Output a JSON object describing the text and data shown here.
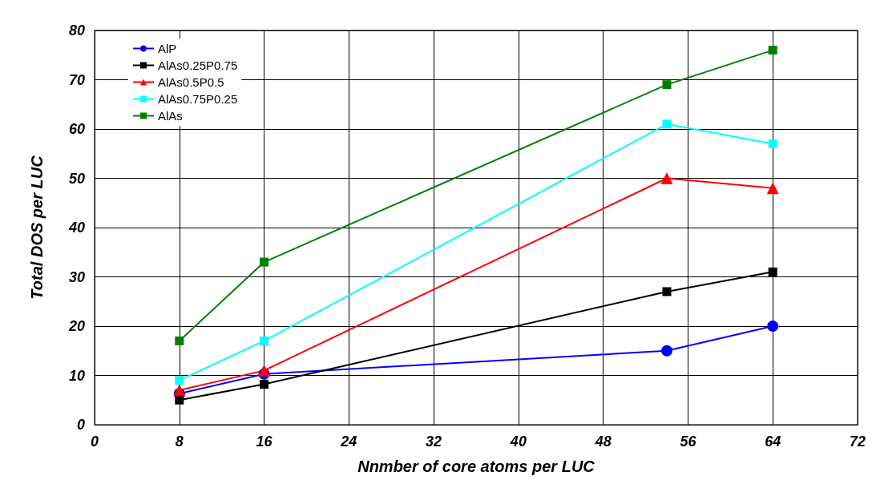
{
  "chart_data": {
    "type": "line",
    "xlabel": "Nnmber of core atoms per LUC",
    "ylabel": "Total DOS per LUC",
    "x": [
      8,
      16,
      54,
      64
    ],
    "xlim": [
      0,
      72
    ],
    "xticks": [
      0,
      8,
      16,
      24,
      32,
      40,
      48,
      56,
      64,
      72
    ],
    "ylim": [
      0,
      80
    ],
    "yticks": [
      0,
      10,
      20,
      30,
      40,
      50,
      60,
      70,
      80
    ],
    "grid": true,
    "legend": "top left",
    "line_style": "solid",
    "series": [
      {
        "name": "AlP",
        "color": "#0000ff",
        "marker": "circle",
        "values": [
          6.3,
          10.3,
          15,
          20
        ]
      },
      {
        "name": "AlAs0.25P0.75",
        "color": "#000000",
        "marker": "square",
        "values": [
          5,
          8.2,
          27,
          31
        ]
      },
      {
        "name": "AlAs0.5P0.5",
        "color": "#ff0000",
        "marker": "triangle",
        "values": [
          7,
          11,
          50,
          48
        ]
      },
      {
        "name": "AlAs0.75P0.25",
        "color": "#00ffff",
        "marker": "square",
        "values": [
          9,
          17,
          61,
          57
        ]
      },
      {
        "name": "AlAs",
        "color": "#008000",
        "marker": "square",
        "values": [
          17,
          33,
          69,
          76
        ]
      }
    ]
  }
}
